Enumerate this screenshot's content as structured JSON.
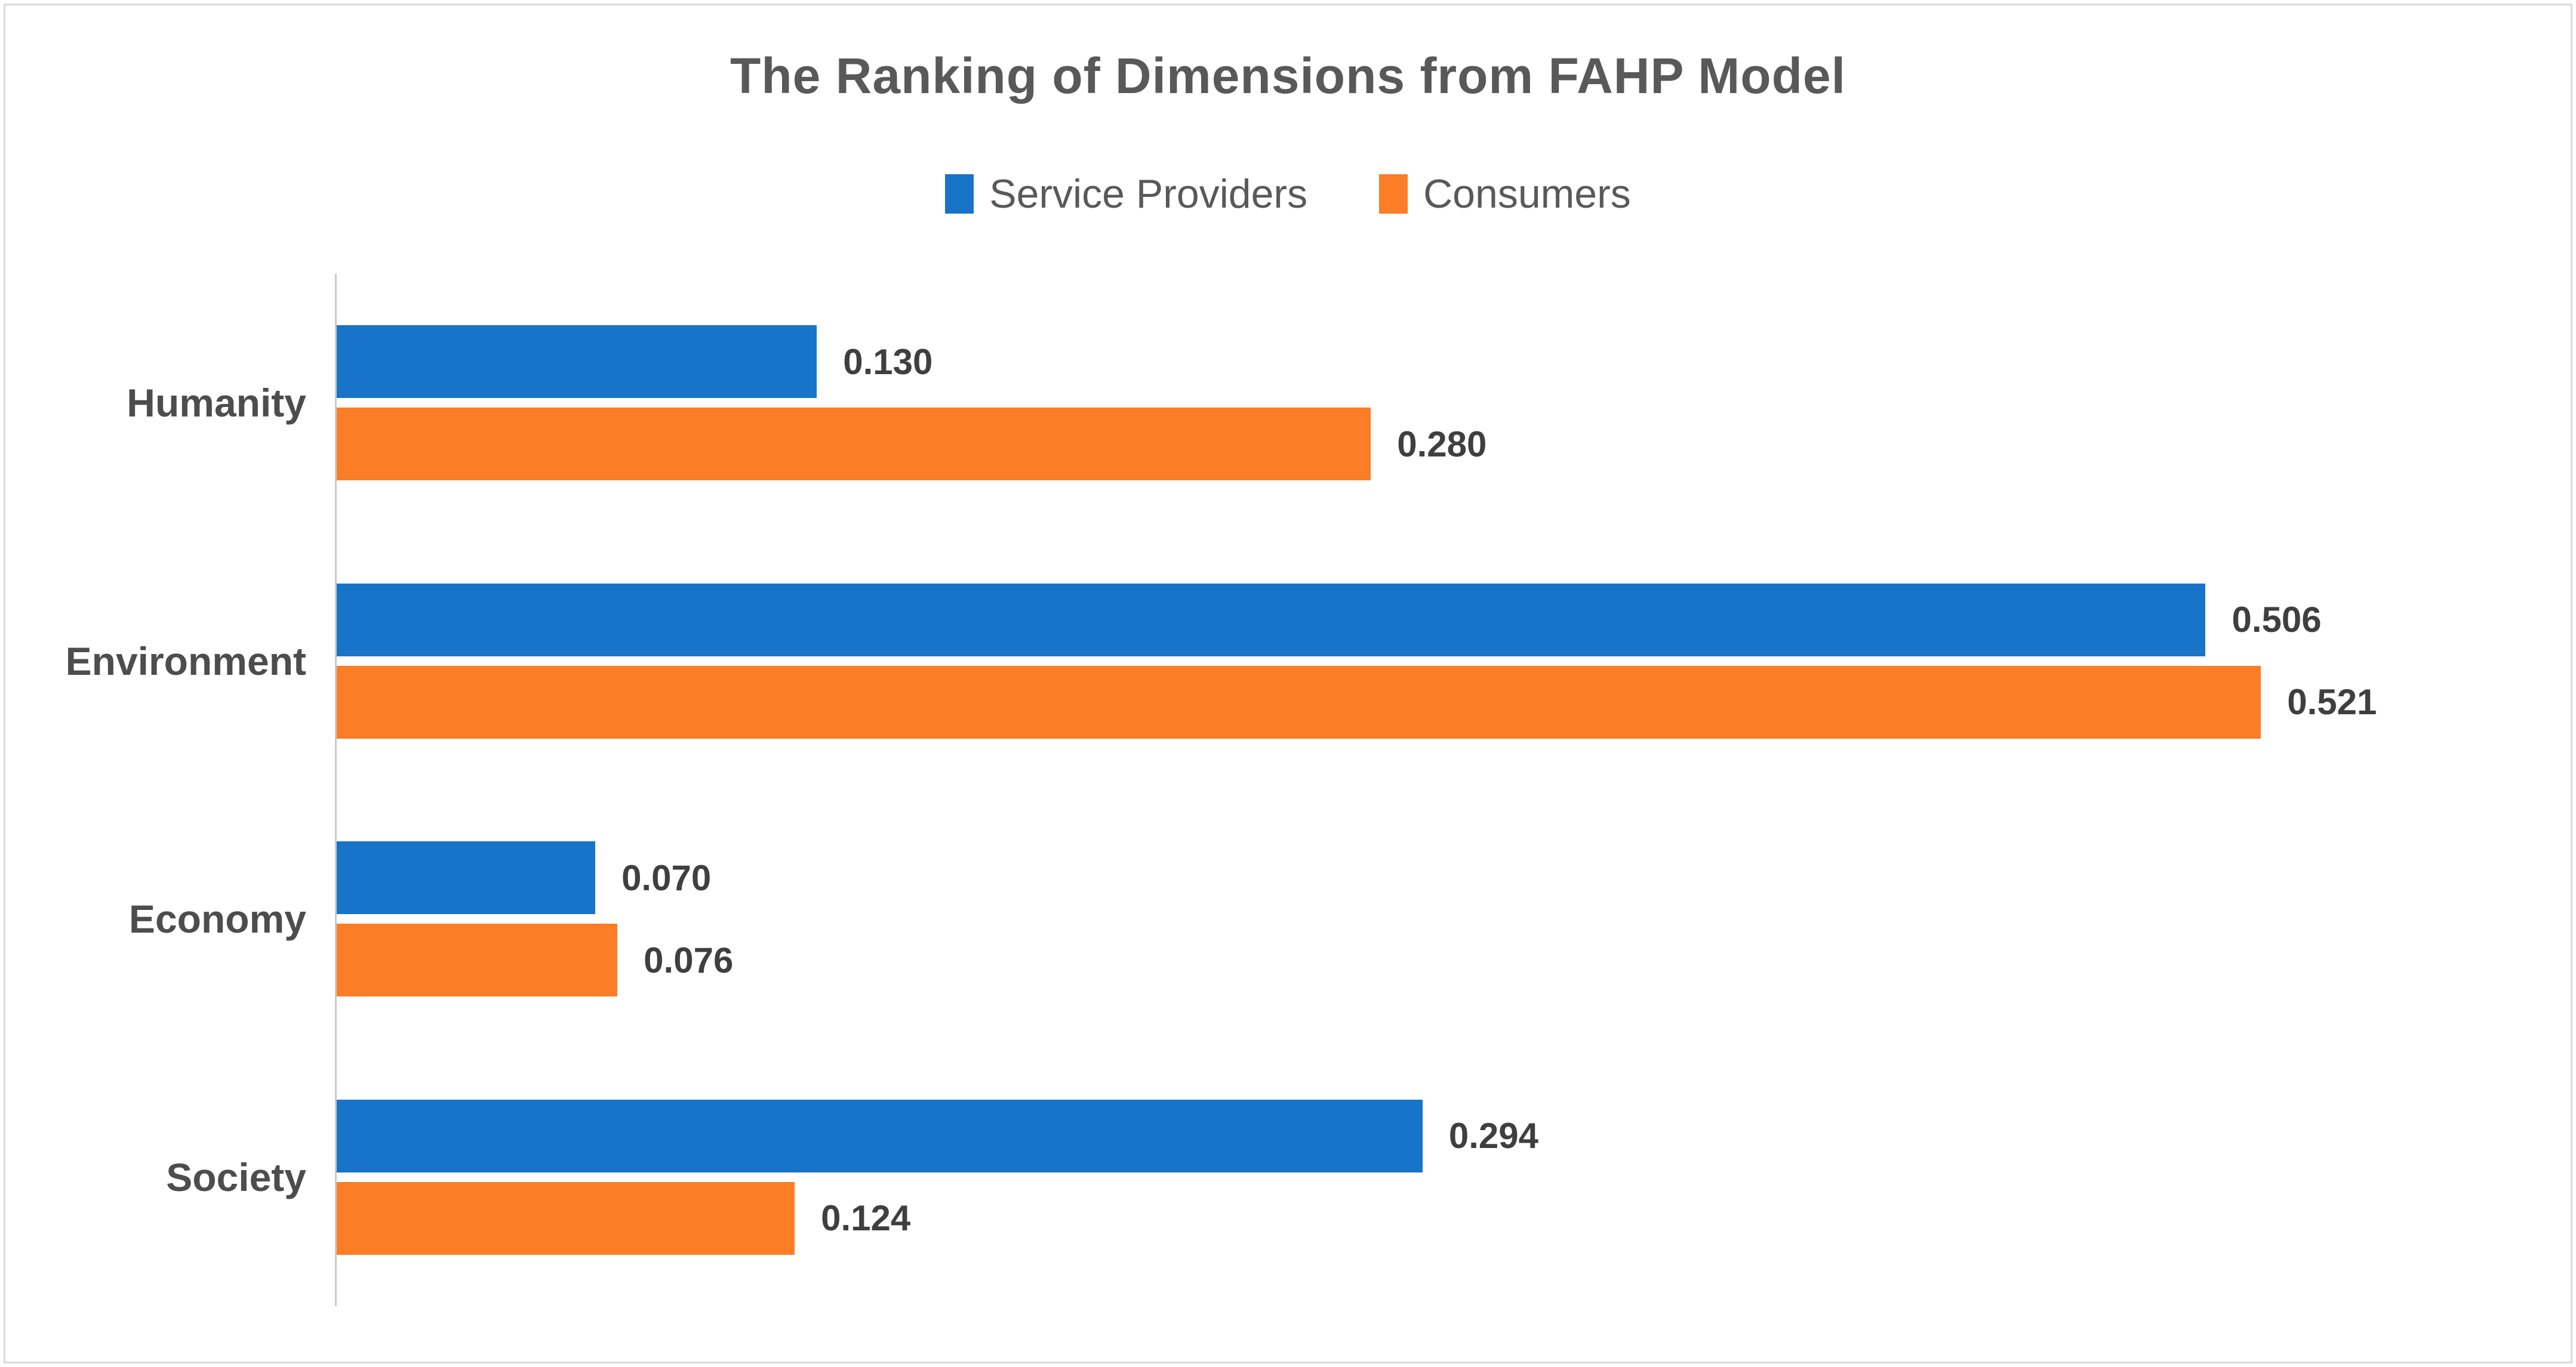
{
  "chart_data": {
    "type": "bar",
    "orientation": "horizontal",
    "title": "The Ranking of Dimensions from FAHP Model",
    "categories": [
      "Humanity",
      "Environment",
      "Economy",
      "Society"
    ],
    "series": [
      {
        "name": "Service Providers",
        "color": "#1874C8",
        "values": [
          0.13,
          0.506,
          0.07,
          0.294
        ]
      },
      {
        "name": "Consumers",
        "color": "#FB7D26",
        "values": [
          0.28,
          0.521,
          0.076,
          0.124
        ]
      }
    ],
    "value_labels": {
      "Service Providers": [
        "0.130",
        "0.506",
        "0.070",
        "0.294"
      ],
      "Consumers": [
        "0.280",
        "0.521",
        "0.076",
        "0.124"
      ]
    },
    "xlim": [
      0,
      0.6
    ],
    "grid": false,
    "legend_position": "top",
    "bar_label_position": "outside-end"
  },
  "colors": {
    "title_text": "#595959",
    "legend_text": "#595959",
    "category_text": "#4D4D4D",
    "value_text": "#3F3F3F",
    "axis_line": "#C9C9C9",
    "frame_border": "#D9D9D9",
    "background": "#FFFFFF"
  }
}
